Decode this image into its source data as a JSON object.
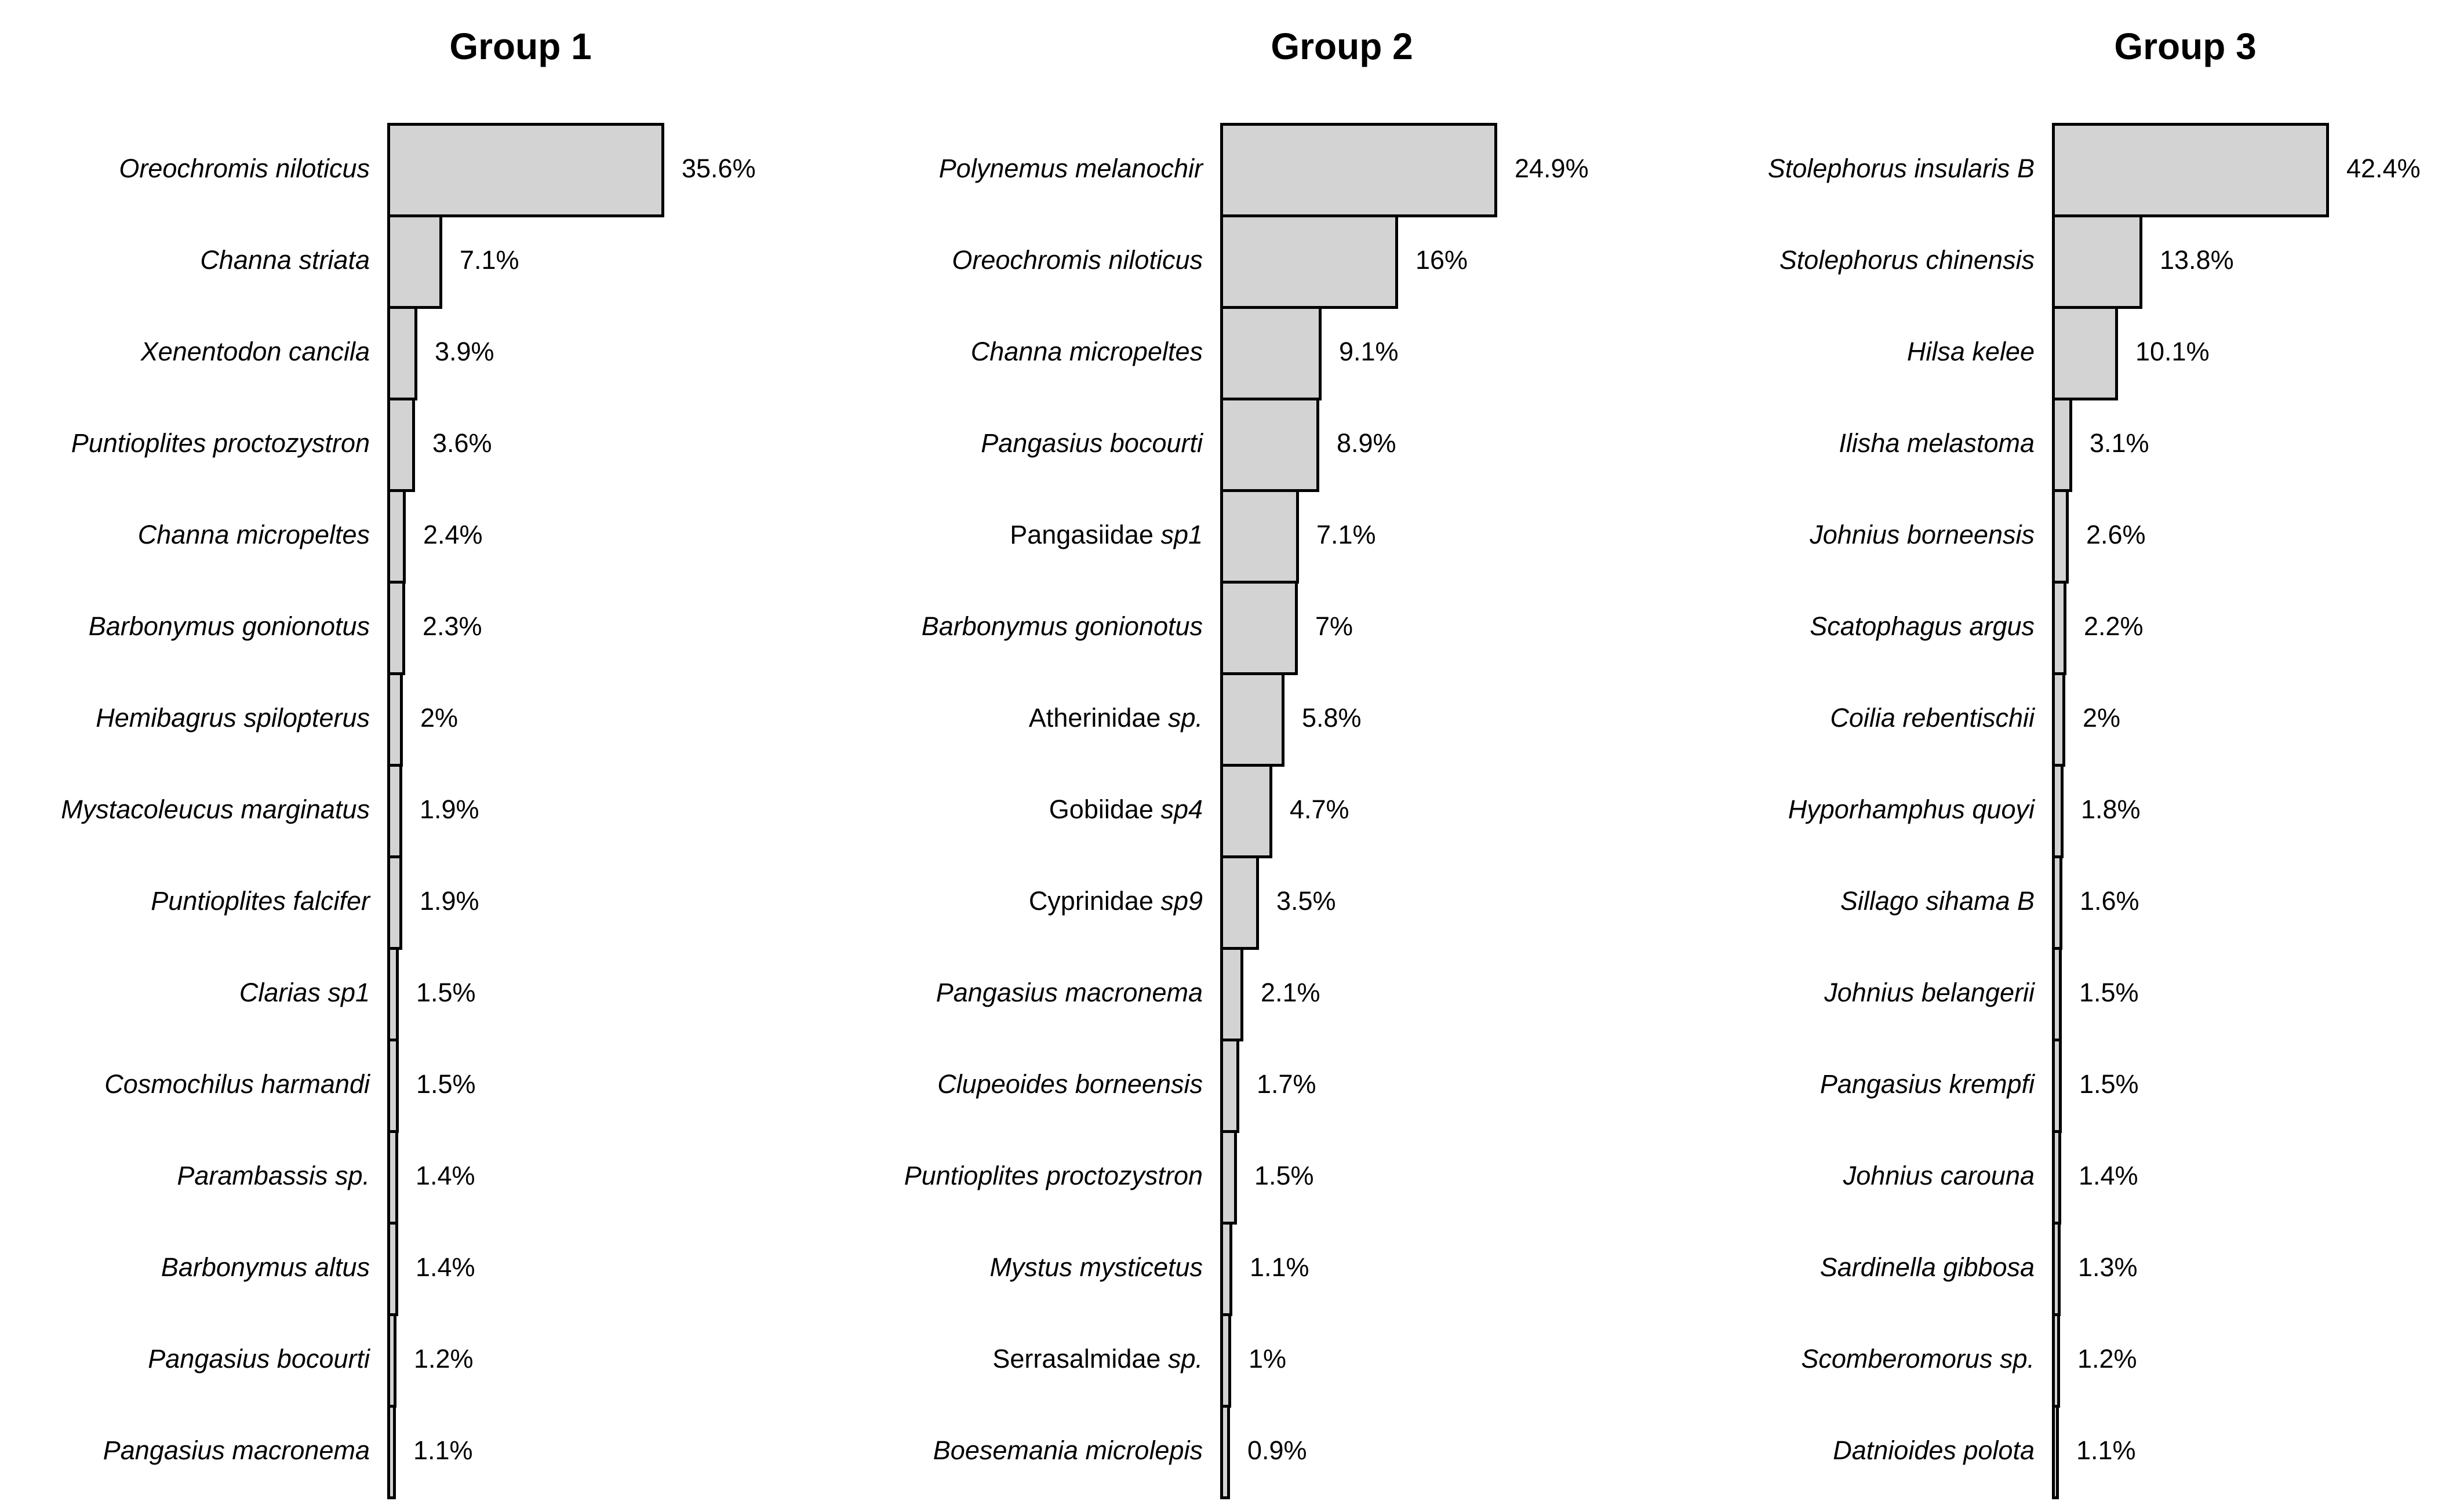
{
  "figure": {
    "background": "#ffffff",
    "bar_fill": "#d3d3d3",
    "bar_border": "#000000",
    "text_color": "#000000"
  },
  "chart_data": [
    {
      "type": "bar",
      "orientation": "horizontal",
      "title": "Group 1",
      "value_unit": "%",
      "grid": false,
      "legend": false,
      "categories": [
        "Oreochromis niloticus",
        "Channa striata",
        "Xenentodon cancila",
        "Puntioplites proctozystron",
        "Channa micropeltes",
        "Barbonymus gonionotus",
        "Hemibagrus spilopterus",
        "Mystacoleucus marginatus",
        "Puntioplites falcifer",
        "Clarias sp1",
        "Cosmochilus harmandi",
        "Parambassis sp.",
        "Barbonymus altus",
        "Pangasius bocourti",
        "Pangasius macronema"
      ],
      "values": [
        35.6,
        7.1,
        3.9,
        3.6,
        2.4,
        2.3,
        2,
        1.9,
        1.9,
        1.5,
        1.5,
        1.4,
        1.4,
        1.2,
        1.1
      ],
      "value_labels": [
        "35.6%",
        "7.1%",
        "3.9%",
        "3.6%",
        "2.4%",
        "2.3%",
        "2%",
        "1.9%",
        "1.9%",
        "1.5%",
        "1.5%",
        "1.4%",
        "1.4%",
        "1.2%",
        "1.1%"
      ],
      "label_parts": [
        [
          {
            "text": "Oreochromis niloticus",
            "italic": true
          }
        ],
        [
          {
            "text": "Channa striata",
            "italic": true
          }
        ],
        [
          {
            "text": "Xenentodon cancila",
            "italic": true
          }
        ],
        [
          {
            "text": "Puntioplites proctozystron",
            "italic": true
          }
        ],
        [
          {
            "text": "Channa micropeltes",
            "italic": true
          }
        ],
        [
          {
            "text": "Barbonymus gonionotus",
            "italic": true
          }
        ],
        [
          {
            "text": "Hemibagrus spilopterus",
            "italic": true
          }
        ],
        [
          {
            "text": "Mystacoleucus marginatus",
            "italic": true
          }
        ],
        [
          {
            "text": "Puntioplites falcifer",
            "italic": true
          }
        ],
        [
          {
            "text": "Clarias sp1",
            "italic": true
          }
        ],
        [
          {
            "text": "Cosmochilus harmandi",
            "italic": true
          }
        ],
        [
          {
            "text": "Parambassis sp.",
            "italic": true
          }
        ],
        [
          {
            "text": "Barbonymus altus",
            "italic": true
          }
        ],
        [
          {
            "text": "Pangasius bocourti",
            "italic": true
          }
        ],
        [
          {
            "text": "Pangasius macronema",
            "italic": true
          }
        ]
      ]
    },
    {
      "type": "bar",
      "orientation": "horizontal",
      "title": "Group 2",
      "value_unit": "%",
      "grid": false,
      "legend": false,
      "categories": [
        "Polynemus melanochir",
        "Oreochromis niloticus",
        "Channa micropeltes",
        "Pangasius bocourti",
        "Pangasiidae sp1",
        "Barbonymus gonionotus",
        "Atherinidae sp.",
        "Gobiidae sp4",
        "Cyprinidae sp9",
        "Pangasius macronema",
        "Clupeoides borneensis",
        "Puntioplites proctozystron",
        "Mystus mysticetus",
        "Serrasalmidae sp.",
        "Boesemania microlepis"
      ],
      "values": [
        24.9,
        16,
        9.1,
        8.9,
        7.1,
        7,
        5.8,
        4.7,
        3.5,
        2.1,
        1.7,
        1.5,
        1.1,
        1,
        0.9
      ],
      "value_labels": [
        "24.9%",
        "16%",
        "9.1%",
        "8.9%",
        "7.1%",
        "7%",
        "5.8%",
        "4.7%",
        "3.5%",
        "2.1%",
        "1.7%",
        "1.5%",
        "1.1%",
        "1%",
        "0.9%"
      ],
      "label_parts": [
        [
          {
            "text": "Polynemus melanochir",
            "italic": true
          }
        ],
        [
          {
            "text": "Oreochromis niloticus",
            "italic": true
          }
        ],
        [
          {
            "text": "Channa micropeltes",
            "italic": true
          }
        ],
        [
          {
            "text": "Pangasius bocourti",
            "italic": true
          }
        ],
        [
          {
            "text": "Pangasiidae ",
            "italic": false
          },
          {
            "text": "sp1",
            "italic": true
          }
        ],
        [
          {
            "text": "Barbonymus gonionotus",
            "italic": true
          }
        ],
        [
          {
            "text": "Atherinidae ",
            "italic": false
          },
          {
            "text": "sp.",
            "italic": true
          }
        ],
        [
          {
            "text": "Gobiidae ",
            "italic": false
          },
          {
            "text": "sp4",
            "italic": true
          }
        ],
        [
          {
            "text": "Cyprinidae ",
            "italic": false
          },
          {
            "text": "sp9",
            "italic": true
          }
        ],
        [
          {
            "text": "Pangasius macronema",
            "italic": true
          }
        ],
        [
          {
            "text": "Clupeoides borneensis",
            "italic": true
          }
        ],
        [
          {
            "text": "Puntioplites proctozystron",
            "italic": true
          }
        ],
        [
          {
            "text": "Mystus mysticetus",
            "italic": true
          }
        ],
        [
          {
            "text": "Serrasalmidae ",
            "italic": false
          },
          {
            "text": "sp.",
            "italic": true
          }
        ],
        [
          {
            "text": "Boesemania microlepis",
            "italic": true
          }
        ]
      ]
    },
    {
      "type": "bar",
      "orientation": "horizontal",
      "title": "Group 3",
      "value_unit": "%",
      "grid": false,
      "legend": false,
      "categories": [
        "Stolephorus insularis B",
        "Stolephorus chinensis",
        "Hilsa kelee",
        "Ilisha melastoma",
        "Johnius borneensis",
        "Scatophagus argus",
        "Coilia rebentischii",
        "Hyporhamphus quoyi",
        "Sillago sihama B",
        "Johnius belangerii",
        "Pangasius krempfi",
        "Johnius carouna",
        "Sardinella gibbosa",
        "Scomberomorus sp.",
        "Datnioides polota"
      ],
      "values": [
        42.4,
        13.8,
        10.1,
        3.1,
        2.6,
        2.2,
        2,
        1.8,
        1.6,
        1.5,
        1.5,
        1.4,
        1.3,
        1.2,
        1.1
      ],
      "value_labels": [
        "42.4%",
        "13.8%",
        "10.1%",
        "3.1%",
        "2.6%",
        "2.2%",
        "2%",
        "1.8%",
        "1.6%",
        "1.5%",
        "1.5%",
        "1.4%",
        "1.3%",
        "1.2%",
        "1.1%"
      ],
      "label_parts": [
        [
          {
            "text": "Stolephorus insularis B",
            "italic": true
          }
        ],
        [
          {
            "text": "Stolephorus chinensis",
            "italic": true
          }
        ],
        [
          {
            "text": "Hilsa kelee",
            "italic": true
          }
        ],
        [
          {
            "text": "Ilisha melastoma",
            "italic": true
          }
        ],
        [
          {
            "text": "Johnius borneensis",
            "italic": true
          }
        ],
        [
          {
            "text": "Scatophagus argus",
            "italic": true
          }
        ],
        [
          {
            "text": "Coilia rebentischii",
            "italic": true
          }
        ],
        [
          {
            "text": "Hyporhamphus quoyi",
            "italic": true
          }
        ],
        [
          {
            "text": "Sillago sihama B",
            "italic": true
          }
        ],
        [
          {
            "text": "Johnius belangerii",
            "italic": true
          }
        ],
        [
          {
            "text": "Pangasius krempfi",
            "italic": true
          }
        ],
        [
          {
            "text": "Johnius carouna",
            "italic": true
          }
        ],
        [
          {
            "text": "Sardinella gibbosa",
            "italic": true
          }
        ],
        [
          {
            "text": "Scomberomorus sp.",
            "italic": true
          }
        ],
        [
          {
            "text": "Datnioides polota",
            "italic": true
          }
        ]
      ]
    }
  ]
}
